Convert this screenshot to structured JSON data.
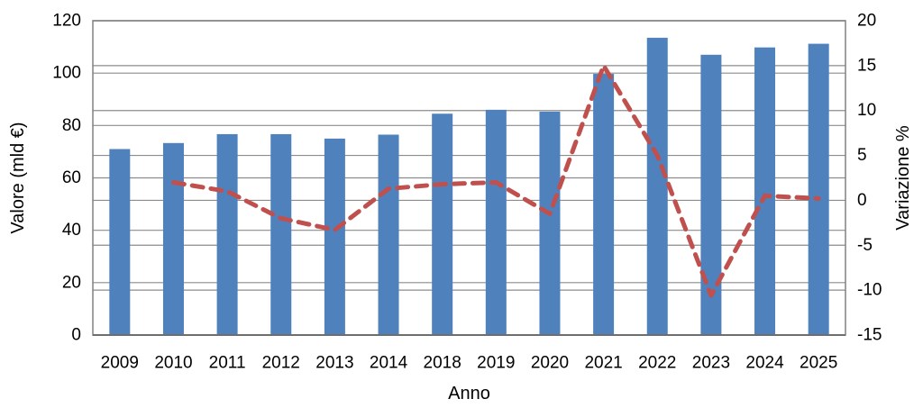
{
  "chart_data": {
    "type": "bar",
    "subtype": "bar+line-dual-axis",
    "categories": [
      "2009",
      "2010",
      "2011",
      "2012",
      "2013",
      "2014",
      "2018",
      "2019",
      "2020",
      "2021",
      "2022",
      "2023",
      "2024",
      "2025"
    ],
    "series": [
      {
        "name": "Valore (mld €)",
        "type": "bar",
        "axis": "left",
        "values": [
          71,
          73.3,
          76.7,
          76.7,
          75,
          76.5,
          84.5,
          86,
          85.3,
          99.7,
          113.5,
          107,
          109.8,
          111.2
        ]
      },
      {
        "name": "Variazione %",
        "type": "line",
        "axis": "right",
        "dashed": true,
        "values": [
          null,
          2,
          1,
          -2,
          -3.3,
          1.3,
          1.8,
          2,
          -1.5,
          15,
          5,
          -10.6,
          0.5,
          0.2
        ]
      }
    ],
    "title": "",
    "xlabel": "Anno",
    "ylabel_left": "Valore (mld €)",
    "ylabel_right": "Variazione %",
    "ylim_left": [
      0,
      120
    ],
    "yticks_left": [
      0,
      20,
      40,
      60,
      80,
      100,
      120
    ],
    "ylim_right": [
      -15,
      20
    ],
    "yticks_right": [
      -15,
      -10,
      -5,
      0,
      5,
      10,
      15,
      20
    ],
    "grid": true,
    "gridlines_both_axes": true,
    "legend": "none",
    "colors": {
      "bar": "#4F81BD",
      "line": "#C0504D",
      "grid": "#8C8C8C",
      "border": "#808080",
      "axis_line": "#6E6E6E",
      "text": "#000000",
      "background": "#FFFFFF"
    }
  }
}
